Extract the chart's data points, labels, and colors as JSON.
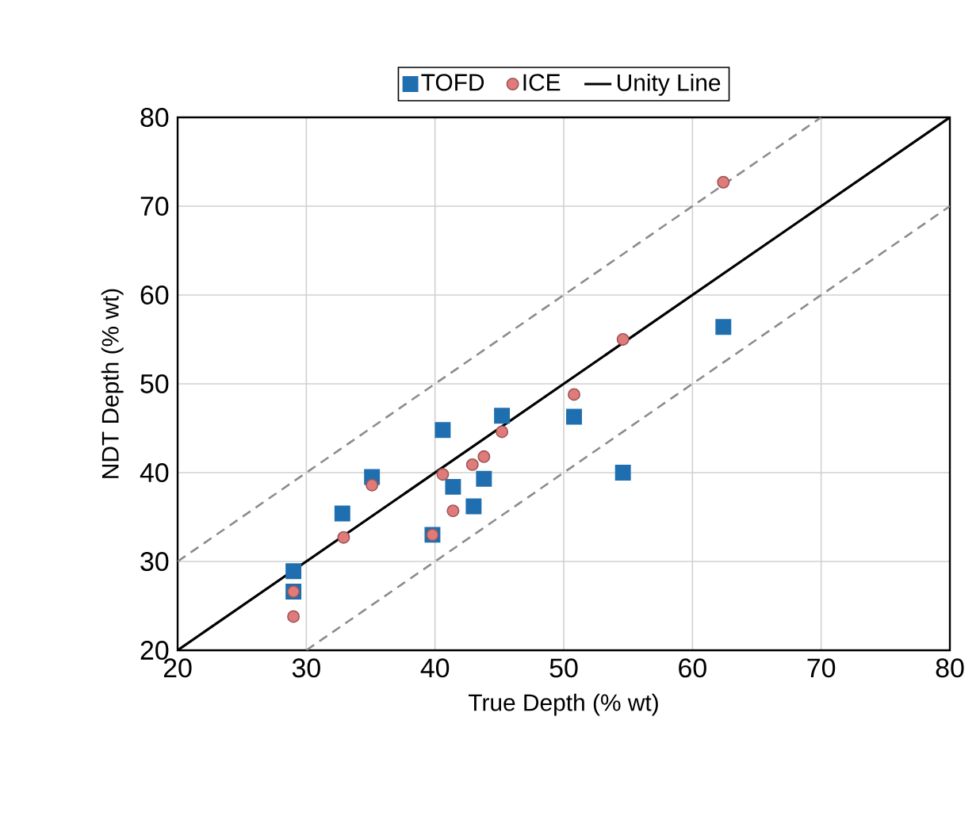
{
  "chart_data": {
    "type": "scatter",
    "xlabel": "True Depth (% wt)",
    "ylabel": "NDT Depth (% wt)",
    "xlim": [
      20,
      80
    ],
    "ylim": [
      20,
      80
    ],
    "xticks": [
      20,
      30,
      40,
      50,
      60,
      70,
      80
    ],
    "yticks": [
      20,
      30,
      40,
      50,
      60,
      70,
      80
    ],
    "grid": true,
    "legend": "top",
    "series": [
      {
        "name": "TOFD",
        "color": "#1f6fb0",
        "marker": "square",
        "x": [
          29.0,
          29.0,
          32.8,
          35.1,
          40.6,
          41.4,
          43.8,
          43.0,
          45.2,
          39.8,
          50.8,
          54.6,
          62.4
        ],
        "values": [
          28.9,
          26.6,
          35.4,
          39.5,
          44.8,
          38.4,
          39.3,
          36.2,
          46.4,
          33.0,
          46.3,
          40.0,
          56.4
        ]
      },
      {
        "name": "ICE",
        "color": "#e07b7b",
        "marker": "circle",
        "x": [
          29.0,
          29.0,
          32.9,
          35.1,
          40.6,
          41.4,
          42.9,
          43.8,
          45.2,
          39.8,
          50.8,
          54.6,
          62.4
        ],
        "values": [
          23.8,
          26.6,
          32.7,
          38.6,
          39.8,
          35.7,
          40.9,
          41.8,
          44.6,
          33.0,
          48.8,
          55.0,
          72.7
        ]
      },
      {
        "name": "Unity Line",
        "type": "line",
        "color": "#000000",
        "line_style": "solid",
        "x": [
          20,
          80
        ],
        "values": [
          20,
          80
        ]
      },
      {
        "type": "line",
        "color": "#8c8c8c",
        "line_style": "dashed",
        "x": [
          20,
          70
        ],
        "values": [
          30,
          80
        ]
      },
      {
        "type": "line",
        "color": "#8c8c8c",
        "line_style": "dashed",
        "x": [
          30,
          80
        ],
        "values": [
          20,
          70
        ]
      }
    ]
  }
}
